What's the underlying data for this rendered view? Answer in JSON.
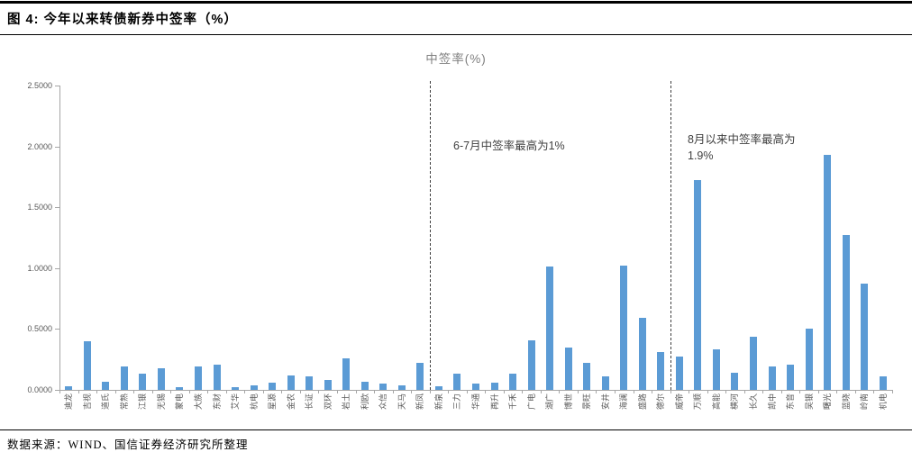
{
  "figure": {
    "title": "图 4: 今年以来转债新券中签率（%）",
    "source": "数据来源：WIND、国信证券经济研究所整理"
  },
  "annotations": {
    "mid": "6-7月中签率最高为1%",
    "right_line1": "8月以来中签率最高为",
    "right_line2": "1.9%"
  },
  "chart_data": {
    "type": "bar",
    "title": "中签率(%)",
    "xlabel": "",
    "ylabel": "",
    "ylim": [
      0,
      2.5
    ],
    "yticks": [
      "0.0000",
      "0.5000",
      "1.0000",
      "1.5000",
      "2.0000",
      "2.5000"
    ],
    "grid": false,
    "legend": "none",
    "bar_color": "#5b9bd5",
    "axis_color": "#a6a6a6",
    "categories": [
      "迪龙",
      "吉视",
      "道氏",
      "常熟",
      "江银",
      "无锡",
      "蒙电",
      "大族",
      "东财",
      "艾华",
      "杭电",
      "星源",
      "金农",
      "长证",
      "双环",
      "岩土",
      "利欧",
      "众信",
      "天马",
      "新凤",
      "新泉",
      "三力",
      "华通",
      "再升",
      "千禾",
      "广电",
      "湖广",
      "博世",
      "景旺",
      "安井",
      "海澜",
      "盛路",
      "德尔",
      "威帝",
      "万顺",
      "高能",
      "横河",
      "长久",
      "凯中",
      "东音",
      "吴银",
      "曙光",
      "蓝晓",
      "岭南",
      "机电"
    ],
    "values": [
      0.03,
      0.4,
      0.07,
      0.19,
      0.13,
      0.18,
      0.02,
      0.19,
      0.21,
      0.02,
      0.04,
      0.06,
      0.12,
      0.11,
      0.08,
      0.26,
      0.07,
      0.05,
      0.04,
      0.22,
      0.03,
      0.13,
      0.05,
      0.06,
      0.13,
      0.41,
      1.01,
      0.35,
      0.22,
      0.11,
      1.02,
      0.59,
      0.31,
      0.27,
      1.72,
      0.33,
      0.14,
      0.44,
      0.19,
      0.21,
      0.5,
      1.93,
      1.27,
      0.87,
      0.11
    ],
    "divider_boundaries": [
      20,
      33
    ]
  }
}
